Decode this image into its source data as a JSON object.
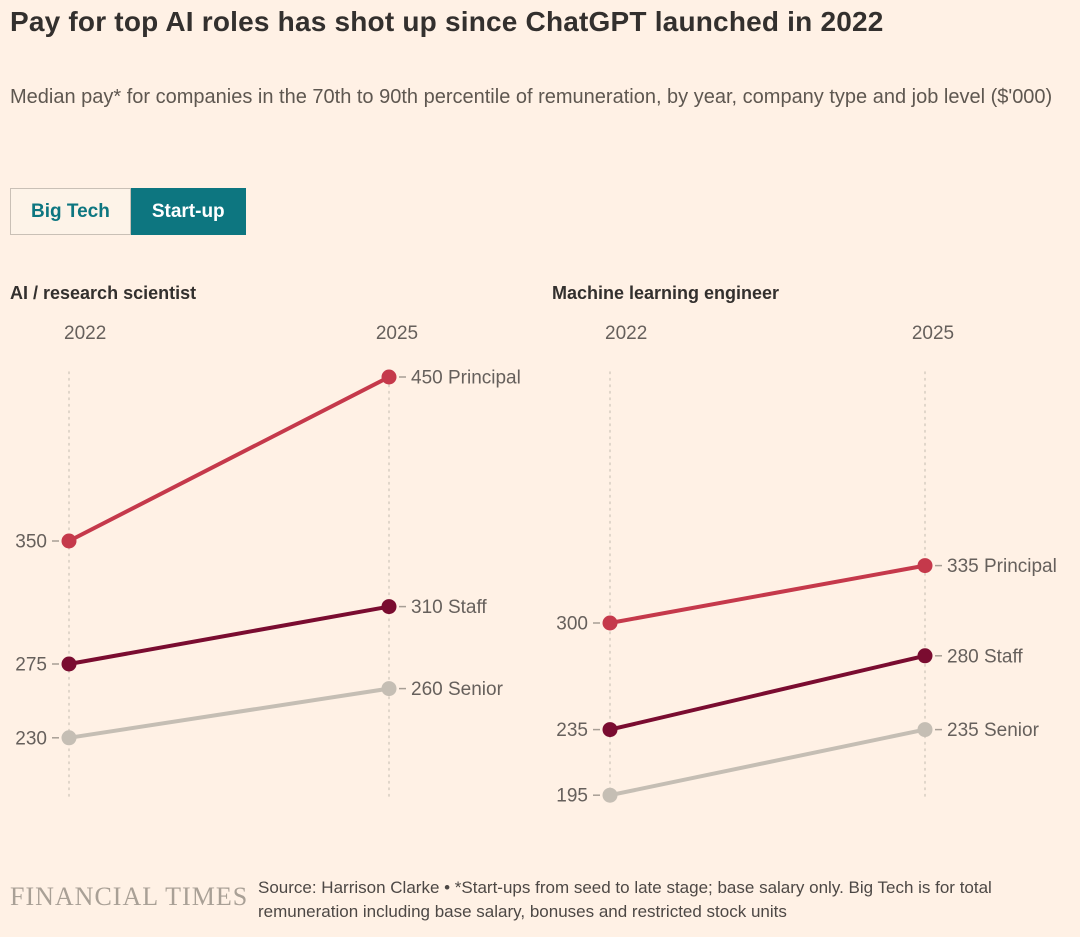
{
  "header": {
    "title": "Pay for top AI roles has shot up since ChatGPT launched in 2022",
    "subtitle": "Median pay* for companies in the 70th to 90th percentile of remuneration, by year, company type and job level ($'000)"
  },
  "toggle": {
    "options": [
      {
        "label": "Big Tech",
        "selected": false
      },
      {
        "label": "Start-up",
        "selected": true
      }
    ]
  },
  "chart_data": [
    {
      "type": "line",
      "title": "AI / research scientist",
      "x_labels": [
        "2022",
        "2025"
      ],
      "series": [
        {
          "name": "Principal",
          "values": [
            350,
            450
          ],
          "color": "#C5394B"
        },
        {
          "name": "Staff",
          "values": [
            275,
            310
          ],
          "color": "#7A0C30"
        },
        {
          "name": "Senior",
          "values": [
            230,
            260
          ],
          "color": "#C5BEB4"
        }
      ],
      "value_axis_range": [
        195,
        450
      ],
      "grid": "dotted-vertical-at-years",
      "legend": "inline-end-labels",
      "units": "$'000"
    },
    {
      "type": "line",
      "title": "Machine learning engineer",
      "x_labels": [
        "2022",
        "2025"
      ],
      "series": [
        {
          "name": "Principal",
          "values": [
            300,
            335
          ],
          "color": "#C5394B"
        },
        {
          "name": "Staff",
          "values": [
            235,
            280
          ],
          "color": "#7A0C30"
        },
        {
          "name": "Senior",
          "values": [
            195,
            235
          ],
          "color": "#C5BEB4"
        }
      ],
      "value_axis_range": [
        195,
        450
      ],
      "grid": "dotted-vertical-at-years",
      "legend": "inline-end-labels",
      "units": "$'000"
    }
  ],
  "colors": {
    "background": "#FFF1E5",
    "accent_teal": "#0D7680",
    "principal_red": "#C5394B",
    "staff_claret": "#7A0C30",
    "senior_gray": "#C5BEB4",
    "axis_dotted": "#D9CFC3",
    "label_gray": "#66605C"
  },
  "footer": {
    "logo": "FINANCIAL TIMES",
    "source": "Source: Harrison Clarke • *Start-ups from seed to late stage; base salary only. Big Tech is for total remuneration including base salary, bonuses and restricted stock units"
  }
}
